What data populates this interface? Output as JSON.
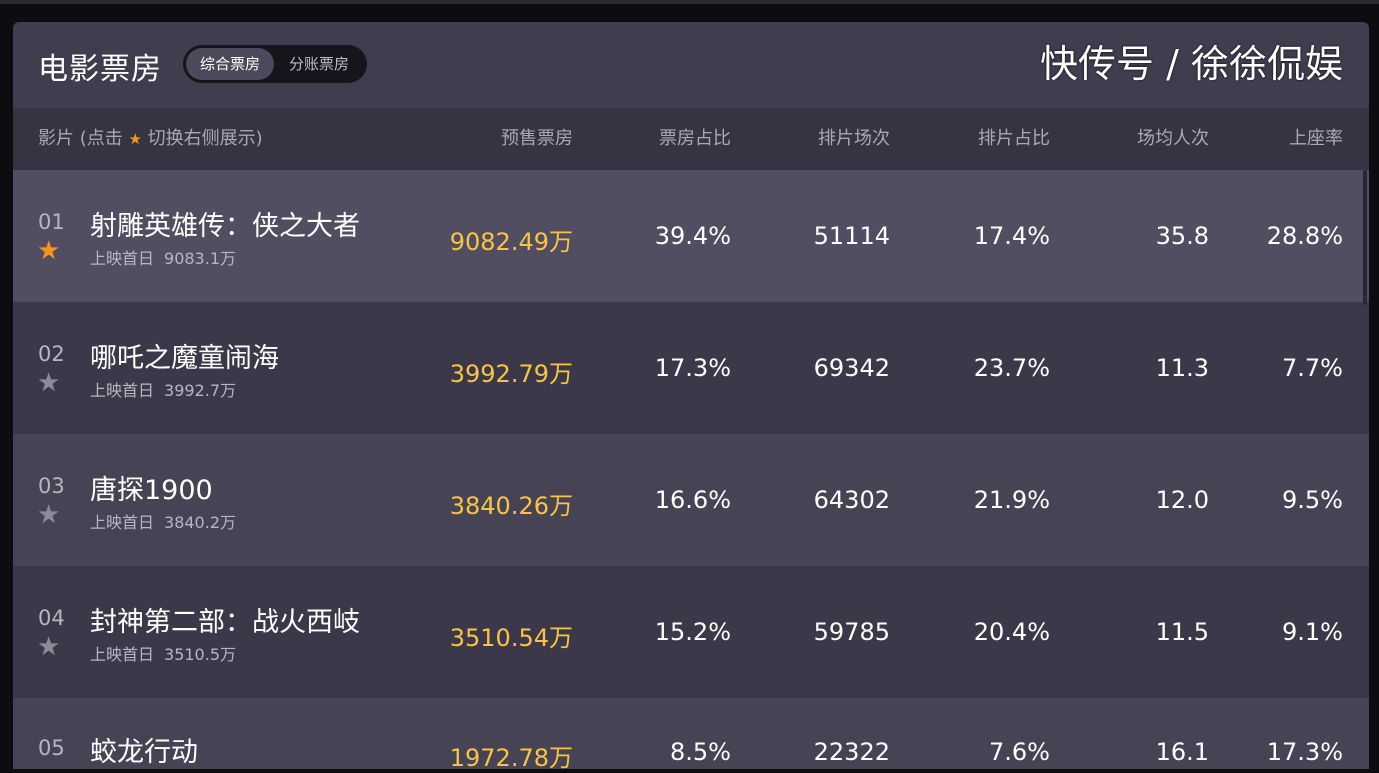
{
  "header": {
    "title": "电影票房",
    "tabs": [
      {
        "label": "综合票房",
        "active": true
      },
      {
        "label": "分账票房",
        "active": false
      }
    ]
  },
  "columns": {
    "film_prefix": "影片 (点击",
    "film_suffix": "切换右侧展示)",
    "presale": "预售票房",
    "box_share": "票房占比",
    "shows": "排片场次",
    "show_share": "排片占比",
    "avg_people": "场均人次",
    "occupancy": "上座率"
  },
  "colors": {
    "accent_gold": "#f9c444",
    "star_active": "#f7931e",
    "star_inactive": "#8d8c96"
  },
  "rows": [
    {
      "rank": "01",
      "starred": true,
      "name": "射雕英雄传：侠之大者",
      "sub_label": "上映首日",
      "sub_value": "9083.1万",
      "presale": "9082.49万",
      "box_share": "39.4%",
      "shows": "51114",
      "show_share": "17.4%",
      "avg_people": "35.8",
      "occupancy": "28.8%"
    },
    {
      "rank": "02",
      "starred": false,
      "name": "哪吒之魔童闹海",
      "sub_label": "上映首日",
      "sub_value": "3992.7万",
      "presale": "3992.79万",
      "box_share": "17.3%",
      "shows": "69342",
      "show_share": "23.7%",
      "avg_people": "11.3",
      "occupancy": "7.7%"
    },
    {
      "rank": "03",
      "starred": false,
      "name": "唐探1900",
      "sub_label": "上映首日",
      "sub_value": "3840.2万",
      "presale": "3840.26万",
      "box_share": "16.6%",
      "shows": "64302",
      "show_share": "21.9%",
      "avg_people": "12.0",
      "occupancy": "9.5%"
    },
    {
      "rank": "04",
      "starred": false,
      "name": "封神第二部：战火西岐",
      "sub_label": "上映首日",
      "sub_value": "3510.5万",
      "presale": "3510.54万",
      "box_share": "15.2%",
      "shows": "59785",
      "show_share": "20.4%",
      "avg_people": "11.5",
      "occupancy": "9.1%"
    },
    {
      "rank": "05",
      "starred": false,
      "name": "蛟龙行动",
      "sub_label": "",
      "sub_value": "",
      "presale": "1972.78万",
      "box_share": "8.5%",
      "shows": "22322",
      "show_share": "7.6%",
      "avg_people": "16.1",
      "occupancy": "17.3%"
    }
  ],
  "watermark": "快传号 / 徐徐侃娱"
}
